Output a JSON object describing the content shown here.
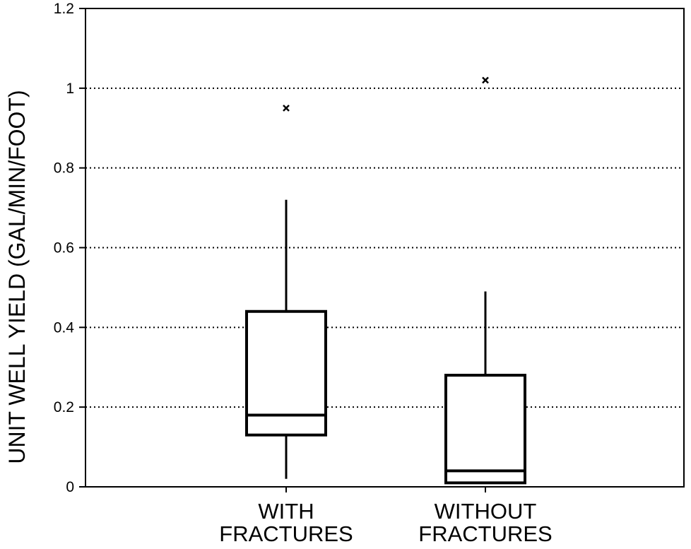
{
  "chart_data": {
    "type": "box",
    "ylabel": "UNIT WELL YIELD (GAL/MIN/FOOT)",
    "xlabel": "",
    "ylim": [
      0,
      1.2
    ],
    "yticks": [
      "0",
      "0.2",
      "0.4",
      "0.6",
      "0.8",
      "1",
      "1.2"
    ],
    "grid": "horizontal dotted",
    "categories": [
      {
        "label_lines": [
          "WITH",
          "FRACTURES"
        ],
        "whisker_low": 0.02,
        "q1": 0.13,
        "median": 0.18,
        "q3": 0.44,
        "whisker_high": 0.72,
        "outliers": [
          0.95
        ]
      },
      {
        "label_lines": [
          "WITHOUT",
          "FRACTURES"
        ],
        "whisker_low": 0.01,
        "q1": 0.01,
        "median": 0.04,
        "q3": 0.28,
        "whisker_high": 0.49,
        "outliers": [
          1.02
        ]
      }
    ]
  }
}
